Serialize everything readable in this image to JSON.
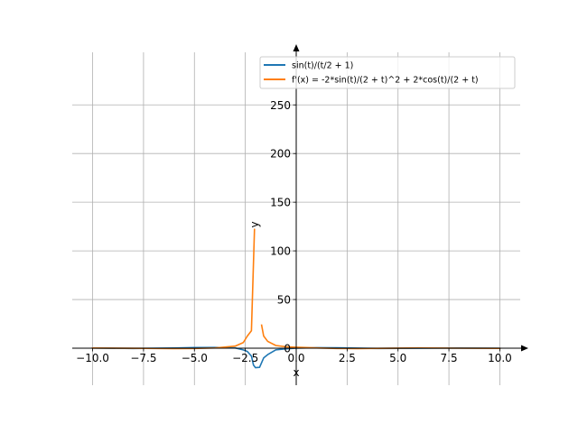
{
  "chart_data": {
    "type": "line",
    "xlabel": "x",
    "ylabel": "y",
    "xlim": [
      -11.0,
      11.0
    ],
    "ylim": [
      -38,
      304
    ],
    "grid": true,
    "legend_position": "top-right",
    "x_ticks": [
      -10.0,
      -7.5,
      -5.0,
      -2.5,
      0.0,
      2.5,
      5.0,
      7.5,
      10.0
    ],
    "x_tick_labels": [
      "−10.0",
      "−7.5",
      "−5.0",
      "−2.5",
      "0.0",
      "2.5",
      "5.0",
      "7.5",
      "10.0"
    ],
    "y_ticks": [
      0,
      50,
      100,
      150,
      200,
      250
    ],
    "y_tick_labels": [
      "0",
      "50",
      "100",
      "150",
      "200",
      "250"
    ],
    "series": [
      {
        "name": "sin(t)/(t/2 + 1)",
        "color": "#1f77b4",
        "segments": [
          [
            [
              -10,
              0.136
            ],
            [
              -8,
              -0.33
            ],
            [
              -6,
              0.14
            ],
            [
              -5,
              0.639
            ],
            [
              -4,
              0.757
            ],
            [
              -3,
              0.282
            ],
            [
              -2.6,
              -1.72
            ],
            [
              -2.4,
              -3.38
            ],
            [
              -2.2,
              -8.08
            ],
            [
              -2.1,
              -17.27
            ],
            [
              -2.0,
              -20.0
            ],
            [
              -1.8,
              -19.6
            ],
            [
              -1.6,
              -9.99
            ],
            [
              -1.4,
              -6.57
            ],
            [
              -1.0,
              -1.68
            ],
            [
              -0.5,
              -0.639
            ],
            [
              0,
              0
            ],
            [
              1,
              0.561
            ],
            [
              2,
              0.455
            ],
            [
              3,
              0.056
            ],
            [
              4,
              -0.252
            ],
            [
              6,
              -0.07
            ],
            [
              8,
              0.198
            ],
            [
              10,
              -0.091
            ]
          ]
        ]
      },
      {
        "name": "f'(x) = -2*sin(t)/(2 + t)^2 + 2*cos(t)/(2 + t)",
        "color": "#ff7f0e",
        "segments": [
          [
            [
              -10,
              0.2
            ],
            [
              -8,
              -0.05
            ],
            [
              -6,
              -0.45
            ],
            [
              -5,
              -0.3
            ],
            [
              -4,
              0.22
            ],
            [
              -3,
              2.12
            ],
            [
              -2.6,
              5.8
            ],
            [
              -2.4,
              12.5
            ],
            [
              -2.2,
              18.0
            ],
            [
              -2.05,
              122.0
            ]
          ],
          [
            [
              -1.7,
              23.7
            ],
            [
              -1.6,
              12.5
            ],
            [
              -1.4,
              7.0
            ],
            [
              -1.0,
              2.78
            ],
            [
              -0.5,
              1.43
            ],
            [
              0,
              1.0
            ],
            [
              1,
              0.27
            ],
            [
              2,
              -0.32
            ],
            [
              3,
              -0.4
            ],
            [
              4,
              -0.2
            ],
            [
              6,
              0.25
            ],
            [
              8,
              0.0
            ],
            [
              10,
              -0.14
            ]
          ]
        ]
      }
    ]
  }
}
